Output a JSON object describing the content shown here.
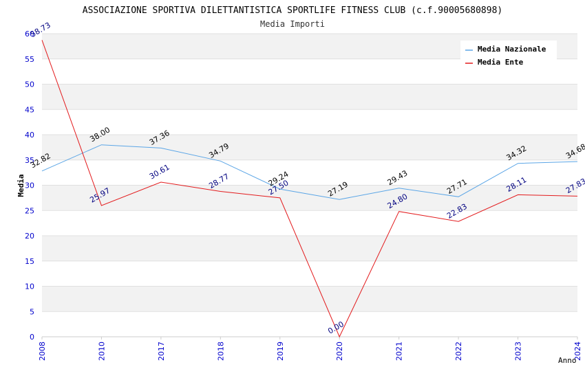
{
  "chart_data": {
    "type": "line",
    "title": "ASSOCIAZIONE SPORTIVA DILETTANTISTICA SPORTLIFE FITNESS CLUB (c.f.90005680898)",
    "subtitle": "Media Importi",
    "xlabel": "Anno",
    "ylabel": "Media",
    "ylim": [
      0,
      60
    ],
    "yticks": [
      "0",
      "5",
      "10",
      "15",
      "20",
      "25",
      "30",
      "35",
      "40",
      "45",
      "50",
      "55",
      "60"
    ],
    "categories": [
      "2008",
      "2010",
      "2017",
      "2018",
      "2019",
      "2020",
      "2021",
      "2022",
      "2023",
      "2024"
    ],
    "grid": "horizontal alternating bands",
    "legend_position": "top-right",
    "series": [
      {
        "name": "Media Nazionale",
        "color": "#5aa5e6",
        "label_color": "#000000",
        "values": [
          32.82,
          38.0,
          37.36,
          34.79,
          29.24,
          27.19,
          29.43,
          27.71,
          34.32,
          34.68
        ],
        "labels": [
          "32.82",
          "38.00",
          "37.36",
          "34.79",
          "29.24",
          "27.19",
          "29.43",
          "27.71",
          "34.32",
          "34.68"
        ]
      },
      {
        "name": "Media Ente",
        "color": "#e31a1c",
        "label_color": "#000080",
        "values": [
          58.73,
          25.97,
          30.61,
          28.77,
          27.5,
          0.0,
          24.8,
          22.83,
          28.11,
          27.83
        ],
        "labels": [
          "58.73",
          "25.97",
          "30.61",
          "28.77",
          "27.50",
          "0.00",
          "24.80",
          "22.83",
          "28.11",
          "27.83"
        ]
      }
    ]
  }
}
